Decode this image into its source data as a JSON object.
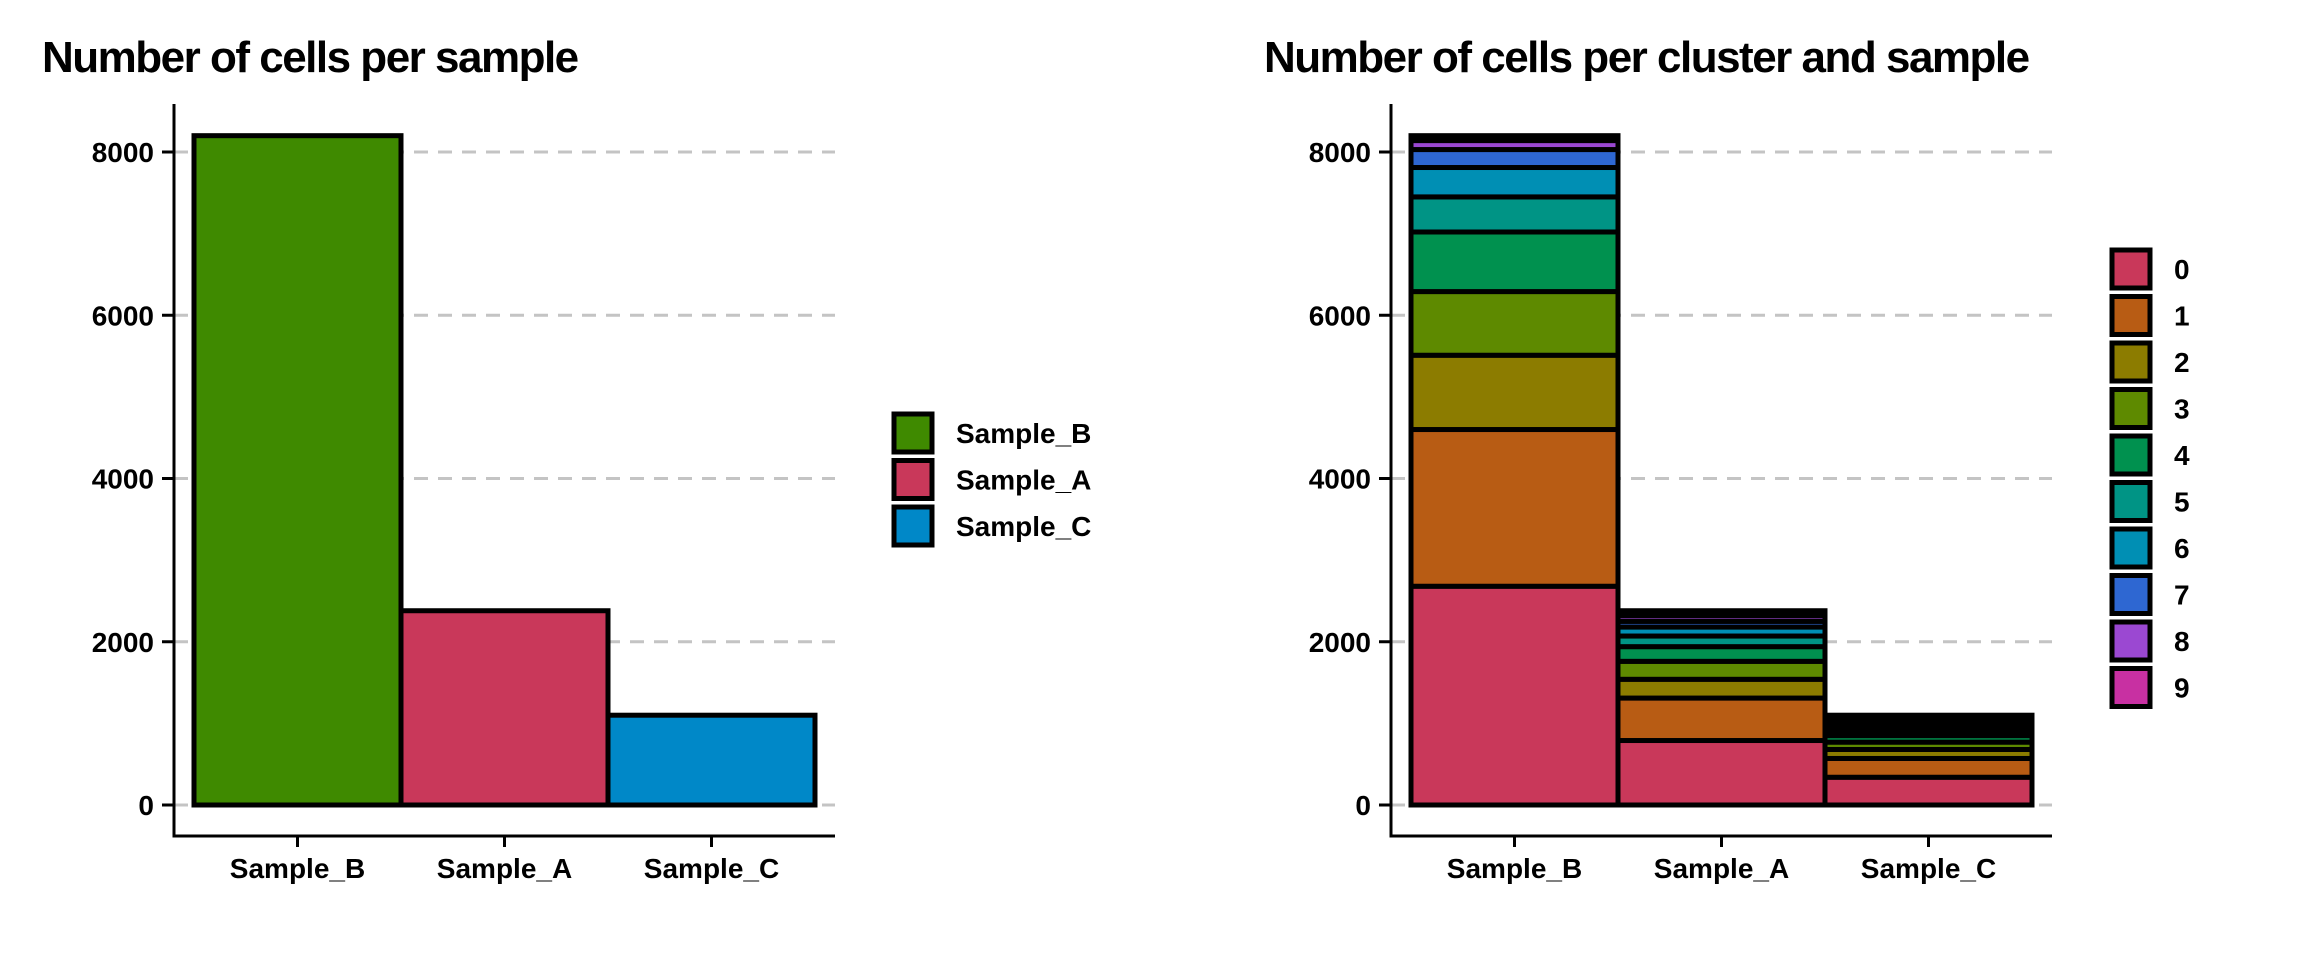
{
  "chart_data": [
    {
      "type": "bar",
      "title": "Number of cells per sample",
      "xlabel": "",
      "ylabel": "",
      "categories": [
        "Sample_B",
        "Sample_A",
        "Sample_C"
      ],
      "values": [
        8200,
        2380,
        1100
      ],
      "colors": [
        "#3f8a00",
        "#c9385a",
        "#0088c8"
      ],
      "ylim": [
        0,
        8600
      ],
      "yticks": [
        0,
        2000,
        4000,
        6000,
        8000
      ],
      "grid": "horizontal-dashed",
      "legend": {
        "position": "right",
        "entries": [
          "Sample_B",
          "Sample_A",
          "Sample_C"
        ]
      }
    },
    {
      "type": "bar",
      "stacked": true,
      "title": "Number of cells per cluster and sample",
      "xlabel": "",
      "ylabel": "",
      "categories": [
        "Sample_B",
        "Sample_A",
        "Sample_C"
      ],
      "ylim": [
        0,
        8600
      ],
      "yticks": [
        0,
        2000,
        4000,
        6000,
        8000
      ],
      "grid": "horizontal-dashed",
      "series": [
        {
          "name": "0",
          "color": "#c9385a",
          "values": [
            2680,
            790,
            340
          ]
        },
        {
          "name": "1",
          "color": "#b85c14",
          "values": [
            1920,
            520,
            230
          ]
        },
        {
          "name": "2",
          "color": "#8c7c00",
          "values": [
            910,
            230,
            110
          ]
        },
        {
          "name": "3",
          "color": "#5e8a00",
          "values": [
            780,
            220,
            90
          ]
        },
        {
          "name": "4",
          "color": "#00914f",
          "values": [
            730,
            180,
            80
          ]
        },
        {
          "name": "5",
          "color": "#009485",
          "values": [
            430,
            130,
            60
          ]
        },
        {
          "name": "6",
          "color": "#008fb4",
          "values": [
            360,
            110,
            50
          ]
        },
        {
          "name": "7",
          "color": "#2e67d2",
          "values": [
            220,
            70,
            40
          ]
        },
        {
          "name": "8",
          "color": "#9b48d2",
          "values": [
            110,
            70,
            40
          ]
        },
        {
          "name": "9",
          "color": "#c830a2",
          "values": [
            60,
            60,
            60
          ]
        }
      ],
      "legend": {
        "position": "right",
        "entries": [
          "0",
          "1",
          "2",
          "3",
          "4",
          "5",
          "6",
          "7",
          "8",
          "9"
        ]
      }
    }
  ]
}
